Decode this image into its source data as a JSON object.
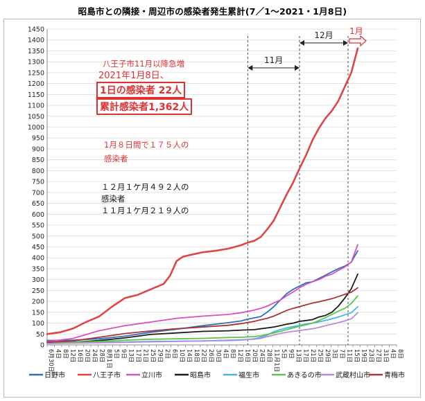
{
  "title": "昭島市との隣接・周辺市の感染者発生累計(7／1〜2021・1月8日)",
  "colors": {
    "hino": "#2e6fb7",
    "hachioji": "#e04545",
    "tachikawa": "#d94fc0",
    "akishima": "#1a1a1a",
    "fussa": "#43b7e8",
    "akiruno": "#5ac64a",
    "musashimurayama": "#b98ad6",
    "ome": "#a8323a",
    "annotation_red": "#e03131",
    "grid": "#dcdcdc"
  },
  "annotations": {
    "line1": "八王子市11月以降急増",
    "line2": "2021年1月8日、",
    "line3": "1日の感染者  22人",
    "line4": "累計感染者1,362人",
    "line5": "1月８日間で１７５人の",
    "line6": "感染者",
    "line7": "１２月１ケ月４９２人の",
    "line8": "感染者",
    "line9": "１１月１ケ月２１９人の"
  },
  "periods": {
    "nov": "11月",
    "dec": "12月",
    "jan": "1月"
  },
  "chart_data": {
    "type": "line",
    "title": "昭島市との隣接・周辺市の感染者発生累計(7／1〜2021・1月8日)",
    "ylim": [
      0,
      1450
    ],
    "yticks": [
      0,
      50,
      100,
      150,
      200,
      250,
      300,
      350,
      400,
      450,
      500,
      550,
      600,
      650,
      700,
      750,
      800,
      850,
      900,
      950,
      1000,
      1050,
      1100,
      1150,
      1200,
      1250,
      1300,
      1350,
      1400,
      1450
    ],
    "x_range": [
      0,
      54
    ],
    "xticks": [
      "6月30日",
      "4日",
      "8日",
      "12日",
      "16日",
      "20日",
      "24日",
      "28日",
      "8月1日",
      "5日",
      "9日",
      "13日",
      "17日",
      "21日",
      "25日",
      "29日",
      "2日",
      "6日",
      "10日",
      "14日",
      "18日",
      "22日",
      "26日",
      "30日",
      "4日",
      "8日",
      "12日",
      "16日",
      "20日",
      "24日",
      "28日",
      "11月1日",
      "5日",
      "9日",
      "13日",
      "17日",
      "21日",
      "25日",
      "29日",
      "3日",
      "7日",
      "11日",
      "15日",
      "19日",
      "23日",
      "27日",
      "31日",
      "4日",
      "8日"
    ],
    "series": [
      {
        "name": "日野市",
        "color_key": "hino",
        "points": [
          [
            0,
            20
          ],
          [
            4,
            22
          ],
          [
            8,
            28
          ],
          [
            12,
            40
          ],
          [
            16,
            58
          ],
          [
            20,
            72
          ],
          [
            24,
            88
          ],
          [
            28,
            102
          ],
          [
            30,
            110
          ],
          [
            31,
            118
          ],
          [
            32,
            124
          ],
          [
            33,
            130
          ],
          [
            34,
            150
          ],
          [
            35,
            175
          ],
          [
            36,
            205
          ],
          [
            37,
            235
          ],
          [
            38,
            255
          ],
          [
            39,
            270
          ],
          [
            40,
            285
          ],
          [
            41,
            290
          ],
          [
            42,
            305
          ],
          [
            43,
            320
          ],
          [
            44,
            335
          ],
          [
            45,
            350
          ],
          [
            46,
            362
          ],
          [
            47,
            380
          ],
          [
            48,
            432
          ]
        ]
      },
      {
        "name": "八王子市",
        "color_key": "hachioji",
        "points": [
          [
            0,
            50
          ],
          [
            2,
            58
          ],
          [
            4,
            75
          ],
          [
            6,
            105
          ],
          [
            8,
            130
          ],
          [
            10,
            175
          ],
          [
            12,
            215
          ],
          [
            14,
            230
          ],
          [
            16,
            255
          ],
          [
            18,
            280
          ],
          [
            19,
            318
          ],
          [
            20,
            385
          ],
          [
            21,
            405
          ],
          [
            22,
            412
          ],
          [
            24,
            425
          ],
          [
            26,
            432
          ],
          [
            28,
            442
          ],
          [
            30,
            458
          ],
          [
            31,
            470
          ],
          [
            32,
            478
          ],
          [
            33,
            495
          ],
          [
            34,
            530
          ],
          [
            35,
            570
          ],
          [
            36,
            630
          ],
          [
            37,
            690
          ],
          [
            38,
            745
          ],
          [
            39,
            810
          ],
          [
            40,
            870
          ],
          [
            41,
            940
          ],
          [
            42,
            995
          ],
          [
            43,
            1040
          ],
          [
            44,
            1075
          ],
          [
            45,
            1120
          ],
          [
            46,
            1185
          ],
          [
            47,
            1250
          ],
          [
            48,
            1362
          ]
        ]
      },
      {
        "name": "立川市",
        "color_key": "tachikawa",
        "points": [
          [
            0,
            15
          ],
          [
            4,
            30
          ],
          [
            8,
            65
          ],
          [
            12,
            88
          ],
          [
            16,
            105
          ],
          [
            20,
            122
          ],
          [
            24,
            132
          ],
          [
            28,
            140
          ],
          [
            30,
            148
          ],
          [
            32,
            160
          ],
          [
            33,
            168
          ],
          [
            34,
            178
          ],
          [
            35,
            192
          ],
          [
            36,
            205
          ],
          [
            37,
            225
          ],
          [
            38,
            243
          ],
          [
            39,
            262
          ],
          [
            40,
            278
          ],
          [
            41,
            290
          ],
          [
            42,
            300
          ],
          [
            43,
            315
          ],
          [
            44,
            325
          ],
          [
            45,
            342
          ],
          [
            46,
            358
          ],
          [
            47,
            380
          ],
          [
            48,
            460
          ]
        ]
      },
      {
        "name": "昭島市",
        "color_key": "akishima",
        "points": [
          [
            0,
            8
          ],
          [
            4,
            12
          ],
          [
            8,
            20
          ],
          [
            12,
            32
          ],
          [
            16,
            48
          ],
          [
            20,
            55
          ],
          [
            24,
            62
          ],
          [
            28,
            65
          ],
          [
            30,
            68
          ],
          [
            32,
            70
          ],
          [
            33,
            74
          ],
          [
            34,
            78
          ],
          [
            35,
            82
          ],
          [
            36,
            88
          ],
          [
            37,
            95
          ],
          [
            38,
            100
          ],
          [
            39,
            108
          ],
          [
            40,
            112
          ],
          [
            41,
            116
          ],
          [
            42,
            128
          ],
          [
            43,
            135
          ],
          [
            44,
            150
          ],
          [
            45,
            178
          ],
          [
            46,
            215
          ],
          [
            47,
            258
          ],
          [
            48,
            325
          ]
        ]
      },
      {
        "name": "福生市",
        "color_key": "fussa",
        "points": [
          [
            0,
            8
          ],
          [
            4,
            10
          ],
          [
            8,
            12
          ],
          [
            12,
            14
          ],
          [
            16,
            16
          ],
          [
            20,
            17
          ],
          [
            24,
            18
          ],
          [
            28,
            20
          ],
          [
            30,
            22
          ],
          [
            32,
            28
          ],
          [
            33,
            35
          ],
          [
            34,
            45
          ],
          [
            35,
            60
          ],
          [
            36,
            70
          ],
          [
            37,
            78
          ],
          [
            38,
            84
          ],
          [
            39,
            90
          ],
          [
            40,
            96
          ],
          [
            41,
            100
          ],
          [
            42,
            106
          ],
          [
            43,
            112
          ],
          [
            44,
            120
          ],
          [
            45,
            128
          ],
          [
            46,
            138
          ],
          [
            47,
            148
          ],
          [
            48,
            175
          ]
        ]
      },
      {
        "name": "あきるの市",
        "color_key": "akiruno",
        "points": [
          [
            0,
            8
          ],
          [
            4,
            12
          ],
          [
            8,
            16
          ],
          [
            12,
            22
          ],
          [
            16,
            26
          ],
          [
            20,
            28
          ],
          [
            24,
            30
          ],
          [
            28,
            34
          ],
          [
            30,
            35
          ],
          [
            32,
            38
          ],
          [
            33,
            42
          ],
          [
            34,
            48
          ],
          [
            35,
            55
          ],
          [
            36,
            62
          ],
          [
            37,
            70
          ],
          [
            38,
            78
          ],
          [
            39,
            86
          ],
          [
            40,
            92
          ],
          [
            41,
            100
          ],
          [
            42,
            112
          ],
          [
            43,
            125
          ],
          [
            44,
            140
          ],
          [
            45,
            155
          ],
          [
            46,
            168
          ],
          [
            47,
            190
          ],
          [
            48,
            225
          ]
        ]
      },
      {
        "name": "武蔵村山市",
        "color_key": "musashimurayama",
        "points": [
          [
            0,
            6
          ],
          [
            4,
            8
          ],
          [
            8,
            10
          ],
          [
            12,
            12
          ],
          [
            16,
            14
          ],
          [
            20,
            16
          ],
          [
            24,
            18
          ],
          [
            28,
            22
          ],
          [
            30,
            24
          ],
          [
            32,
            26
          ],
          [
            33,
            30
          ],
          [
            34,
            38
          ],
          [
            35,
            45
          ],
          [
            36,
            52
          ],
          [
            37,
            58
          ],
          [
            38,
            62
          ],
          [
            39,
            66
          ],
          [
            40,
            70
          ],
          [
            41,
            74
          ],
          [
            42,
            80
          ],
          [
            43,
            88
          ],
          [
            44,
            95
          ],
          [
            45,
            102
          ],
          [
            46,
            110
          ],
          [
            47,
            120
          ],
          [
            48,
            148
          ]
        ]
      },
      {
        "name": "青梅市",
        "color_key": "ome",
        "points": [
          [
            0,
            12
          ],
          [
            4,
            18
          ],
          [
            8,
            35
          ],
          [
            12,
            52
          ],
          [
            16,
            64
          ],
          [
            20,
            74
          ],
          [
            24,
            82
          ],
          [
            28,
            90
          ],
          [
            30,
            98
          ],
          [
            32,
            108
          ],
          [
            33,
            115
          ],
          [
            34,
            122
          ],
          [
            35,
            132
          ],
          [
            36,
            145
          ],
          [
            37,
            158
          ],
          [
            38,
            168
          ],
          [
            39,
            176
          ],
          [
            40,
            184
          ],
          [
            41,
            192
          ],
          [
            42,
            198
          ],
          [
            43,
            205
          ],
          [
            44,
            212
          ],
          [
            45,
            222
          ],
          [
            46,
            232
          ],
          [
            47,
            242
          ],
          [
            48,
            262
          ]
        ]
      }
    ]
  }
}
